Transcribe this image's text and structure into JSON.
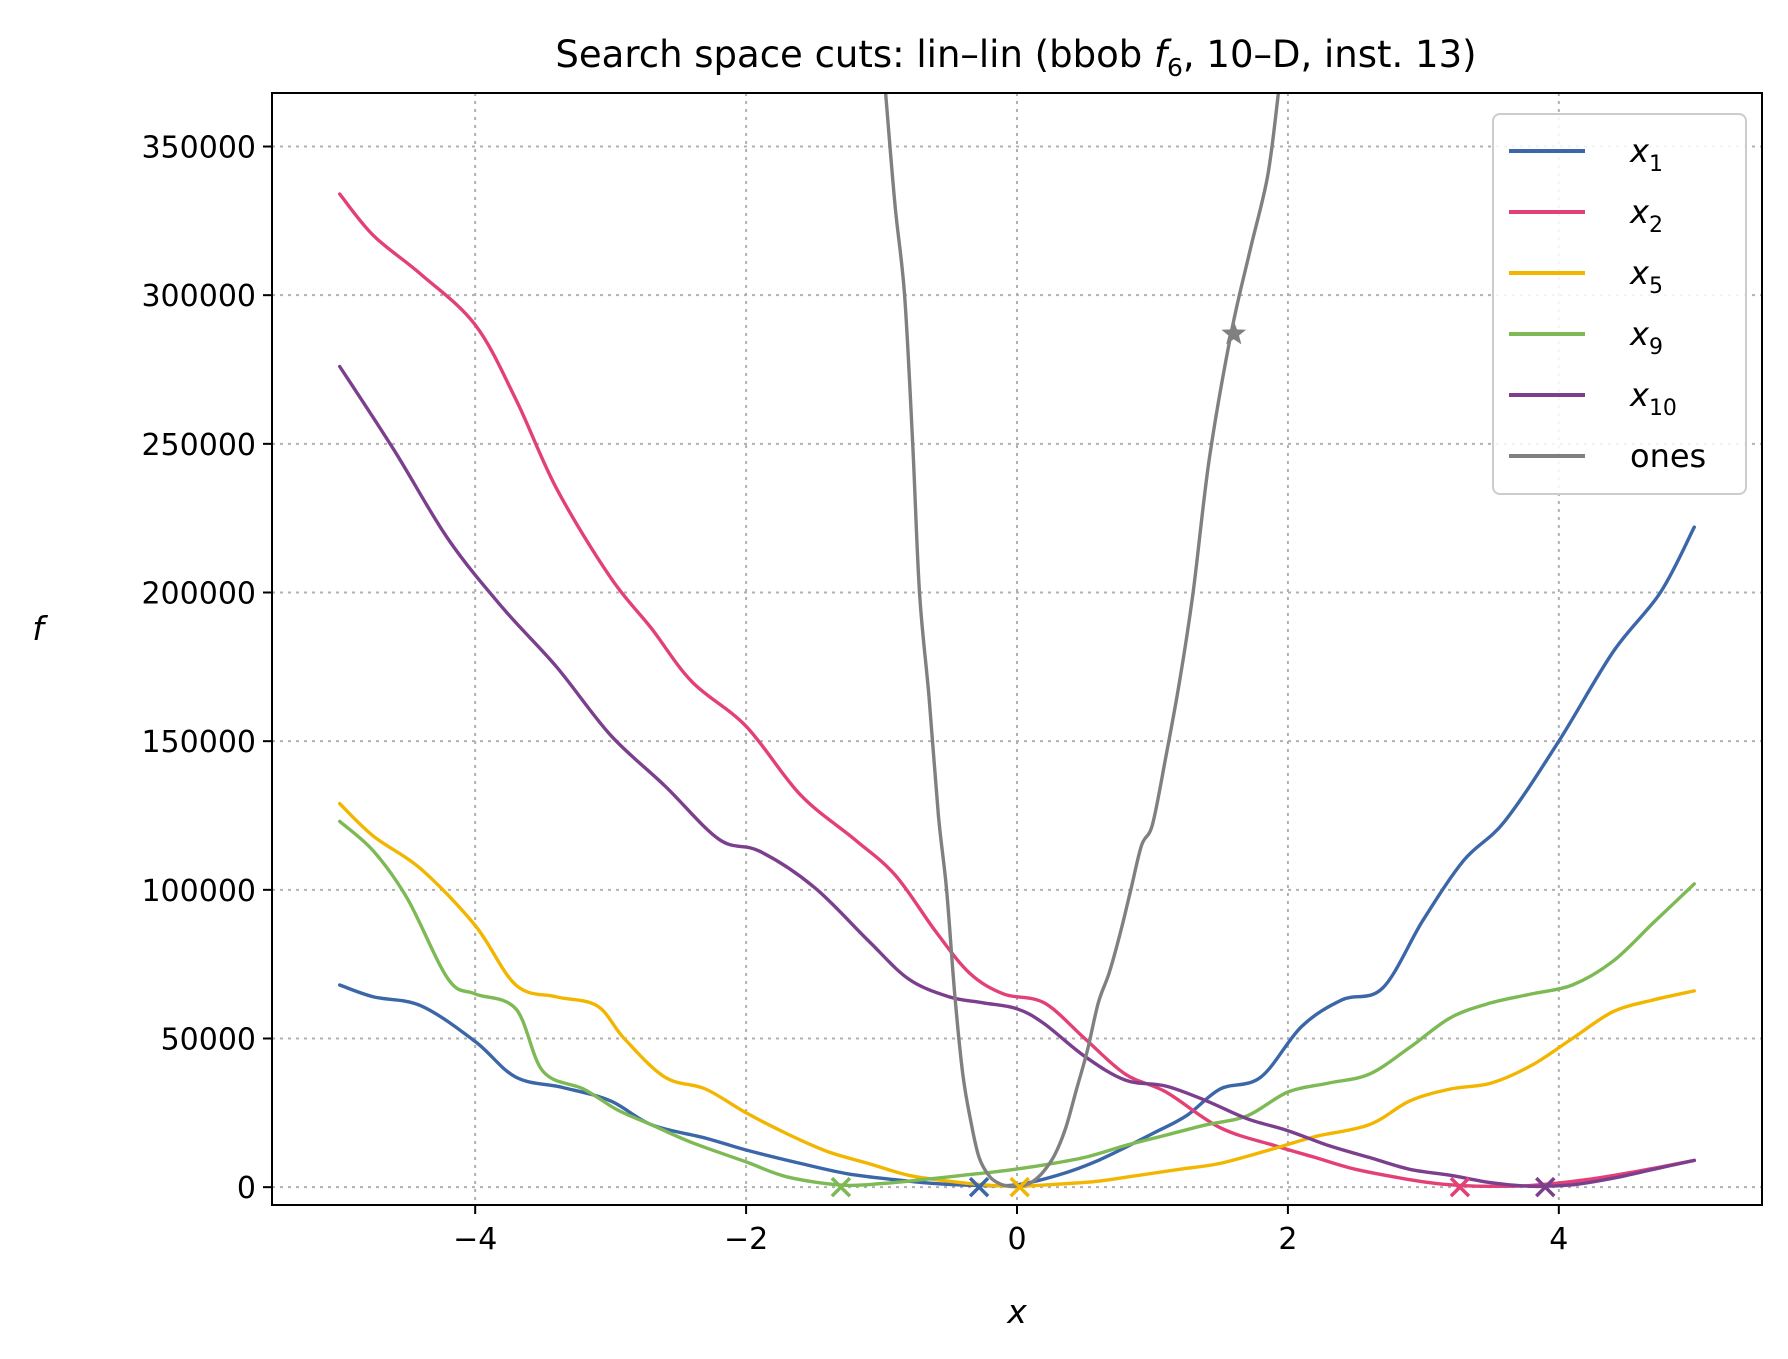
{
  "chart_data": {
    "type": "line",
    "title": {
      "prefix": "Search space cuts: lin–lin (bbob ",
      "f_symbol": "f",
      "f_sub": "6",
      "suffix": ", 10–D, inst. 13)"
    },
    "xlabel": "x",
    "ylabel": "f",
    "xlim": [
      -5.5,
      5.5
    ],
    "ylim": [
      -6000,
      368000
    ],
    "xticks": [
      -4,
      -2,
      0,
      2,
      4
    ],
    "xtick_labels": [
      "−4",
      "−2",
      "0",
      "2",
      "4"
    ],
    "yticks": [
      0,
      50000,
      100000,
      150000,
      200000,
      250000,
      300000,
      350000
    ],
    "ytick_labels": [
      "0",
      "50000",
      "100000",
      "150000",
      "200000",
      "250000",
      "300000",
      "350000"
    ],
    "grid": true,
    "legend_position": "top-right",
    "series": [
      {
        "name": "x",
        "sub": "1",
        "color": "#3b66a8",
        "x": [
          -5.0,
          -4.75,
          -4.4,
          -4.0,
          -3.7,
          -3.35,
          -3.0,
          -2.7,
          -2.3,
          -2.0,
          -1.6,
          -1.25,
          -0.9,
          -0.6,
          -0.3,
          0.0,
          0.3,
          0.6,
          1.0,
          1.25,
          1.5,
          1.8,
          2.1,
          2.4,
          2.7,
          3.0,
          3.3,
          3.6,
          4.0,
          4.4,
          4.75,
          5.0
        ],
        "y": [
          68000,
          64000,
          61000,
          49000,
          37000,
          33500,
          29000,
          21000,
          16500,
          12500,
          8000,
          4500,
          2500,
          1200,
          600,
          800,
          4000,
          9000,
          18000,
          24000,
          33000,
          37000,
          54000,
          63000,
          67000,
          90000,
          110000,
          123000,
          150000,
          180000,
          200000,
          222000
        ]
      },
      {
        "name": "x",
        "sub": "2",
        "color": "#e34076",
        "x": [
          -5.0,
          -4.75,
          -4.4,
          -4.0,
          -3.7,
          -3.4,
          -3.0,
          -2.7,
          -2.4,
          -2.0,
          -1.6,
          -1.2,
          -0.9,
          -0.6,
          -0.35,
          -0.1,
          0.2,
          0.5,
          0.8,
          1.1,
          1.5,
          1.9,
          2.2,
          2.5,
          2.9,
          3.1,
          3.3,
          3.5,
          3.8,
          4.2,
          4.6,
          5.0
        ],
        "y": [
          334000,
          320000,
          307000,
          290000,
          265000,
          235000,
          205000,
          188000,
          170000,
          155000,
          132000,
          117000,
          105000,
          86000,
          72000,
          65000,
          62000,
          50000,
          38000,
          32000,
          20000,
          14000,
          10000,
          6000,
          2500,
          1200,
          500,
          300,
          600,
          2500,
          5500,
          9000
        ]
      },
      {
        "name": "x",
        "sub": "5",
        "color": "#f2b600",
        "x": [
          -5.0,
          -4.75,
          -4.4,
          -4.0,
          -3.7,
          -3.4,
          -3.1,
          -2.9,
          -2.6,
          -2.3,
          -2.0,
          -1.7,
          -1.4,
          -1.1,
          -0.8,
          -0.5,
          -0.25,
          0.0,
          0.3,
          0.6,
          0.9,
          1.2,
          1.5,
          1.9,
          2.2,
          2.6,
          2.9,
          3.2,
          3.5,
          3.8,
          4.1,
          4.4,
          4.7,
          5.0
        ],
        "y": [
          129000,
          118000,
          107000,
          88000,
          68000,
          64000,
          61000,
          50000,
          37000,
          33000,
          25000,
          18000,
          12000,
          8000,
          4000,
          2000,
          800,
          300,
          1000,
          2000,
          4000,
          6000,
          8000,
          13000,
          17000,
          21000,
          29000,
          33000,
          35000,
          41000,
          50000,
          59000,
          63000,
          66000
        ]
      },
      {
        "name": "x",
        "sub": "9",
        "color": "#7db954",
        "x": [
          -5.0,
          -4.75,
          -4.5,
          -4.2,
          -4.0,
          -3.7,
          -3.5,
          -3.2,
          -2.95,
          -2.7,
          -2.4,
          -2.0,
          -1.7,
          -1.3,
          -1.0,
          -0.7,
          -0.4,
          -0.1,
          0.2,
          0.5,
          0.8,
          1.1,
          1.4,
          1.7,
          2.0,
          2.3,
          2.6,
          2.9,
          3.2,
          3.5,
          3.8,
          4.1,
          4.4,
          4.7,
          5.0
        ],
        "y": [
          123000,
          113000,
          97000,
          70000,
          65000,
          60000,
          39000,
          33000,
          26000,
          21000,
          15000,
          8500,
          3500,
          700,
          1200,
          2500,
          4000,
          5500,
          7500,
          10000,
          14000,
          17500,
          21000,
          24000,
          32000,
          35000,
          38000,
          47000,
          57000,
          62000,
          65000,
          68000,
          76000,
          89000,
          102000
        ]
      },
      {
        "name": "x",
        "sub": "10",
        "color": "#7b3f8e",
        "x": [
          -5.0,
          -4.6,
          -4.2,
          -3.8,
          -3.4,
          -3.0,
          -2.6,
          -2.2,
          -1.9,
          -1.5,
          -1.1,
          -0.8,
          -0.5,
          -0.25,
          0.0,
          0.2,
          0.5,
          0.8,
          1.1,
          1.4,
          1.7,
          2.0,
          2.3,
          2.6,
          2.9,
          3.2,
          3.5,
          3.8,
          4.1,
          4.4,
          4.7,
          5.0
        ],
        "y": [
          276000,
          248000,
          218000,
          195000,
          175000,
          152000,
          135000,
          117000,
          113000,
          101000,
          83000,
          70000,
          64000,
          62000,
          60000,
          55000,
          44000,
          36000,
          34000,
          29000,
          23000,
          19000,
          14000,
          10000,
          6000,
          4000,
          1500,
          300,
          800,
          3000,
          6000,
          9000
        ]
      },
      {
        "name": "ones",
        "sub": "",
        "color": "#808080",
        "x": [
          -0.97,
          -0.9,
          -0.83,
          -0.77,
          -0.72,
          -0.65,
          -0.58,
          -0.52,
          -0.46,
          -0.4,
          -0.34,
          -0.28,
          -0.2,
          -0.12,
          -0.05,
          0.0,
          0.05,
          0.12,
          0.2,
          0.28,
          0.36,
          0.44,
          0.52,
          0.6,
          0.68,
          0.76,
          0.84,
          0.92,
          1.0,
          1.1,
          1.2,
          1.3,
          1.42,
          1.58,
          1.72,
          1.85,
          1.93
        ],
        "y": [
          368000,
          330000,
          300000,
          250000,
          200000,
          165000,
          125000,
          100000,
          65000,
          38000,
          22000,
          10000,
          3500,
          1000,
          300,
          200,
          600,
          2000,
          5500,
          11000,
          20000,
          33000,
          46000,
          62000,
          72000,
          85000,
          100000,
          115000,
          122000,
          145000,
          170000,
          200000,
          245000,
          287000,
          315000,
          340000,
          368000
        ]
      }
    ],
    "markers": [
      {
        "x": -0.28,
        "y": 0,
        "color": "#3b66a8",
        "shape": "x"
      },
      {
        "x": 3.27,
        "y": 0,
        "color": "#e34076",
        "shape": "x"
      },
      {
        "x": 0.02,
        "y": 0,
        "color": "#f2b600",
        "shape": "x"
      },
      {
        "x": -1.3,
        "y": 0,
        "color": "#7db954",
        "shape": "x"
      },
      {
        "x": 3.9,
        "y": 0,
        "color": "#7b3f8e",
        "shape": "x"
      },
      {
        "x": 1.6,
        "y": 287000,
        "color": "#808080",
        "shape": "star"
      }
    ]
  }
}
